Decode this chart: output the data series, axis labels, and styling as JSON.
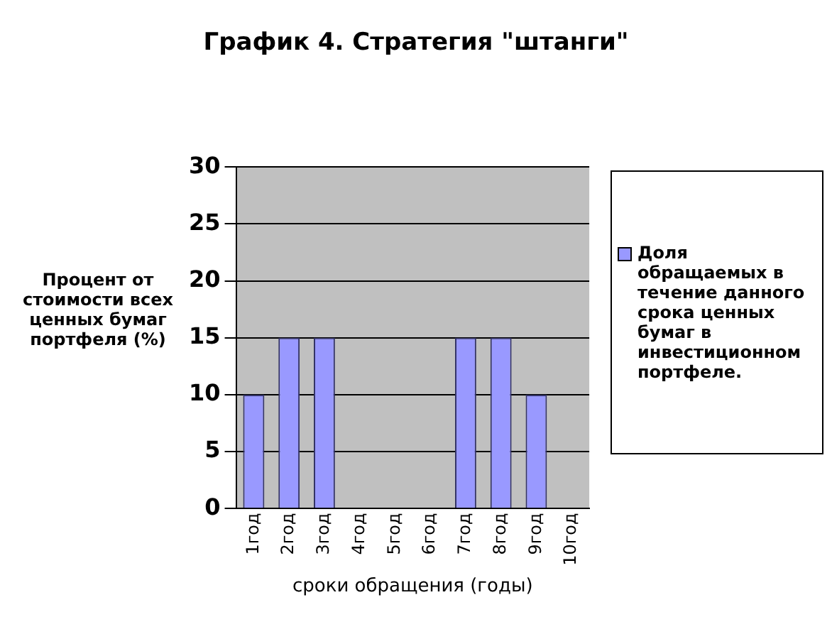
{
  "chart_data": {
    "type": "bar",
    "title": "График 4. Стратегия \"штанги\"",
    "ylabel": "Процент от стоимости всех ценных бумаг портфеля (%)",
    "xlabel": "сроки обращения (годы)",
    "categories": [
      "1год",
      "2год",
      "3год",
      "4год",
      "5год",
      "6год",
      "7год",
      "8год",
      "9год",
      "10год"
    ],
    "series": [
      {
        "name": "Доля обращаемых в течение данного срока ценных бумаг в инвестиционном портфеле.",
        "color": "#9999ff",
        "values": [
          10,
          15,
          15,
          0,
          0,
          0,
          15,
          15,
          10,
          0
        ]
      }
    ],
    "ylim": [
      0,
      30
    ],
    "yticks": [
      0,
      5,
      10,
      15,
      20,
      25,
      30
    ],
    "grid": "y",
    "legend": "right"
  }
}
